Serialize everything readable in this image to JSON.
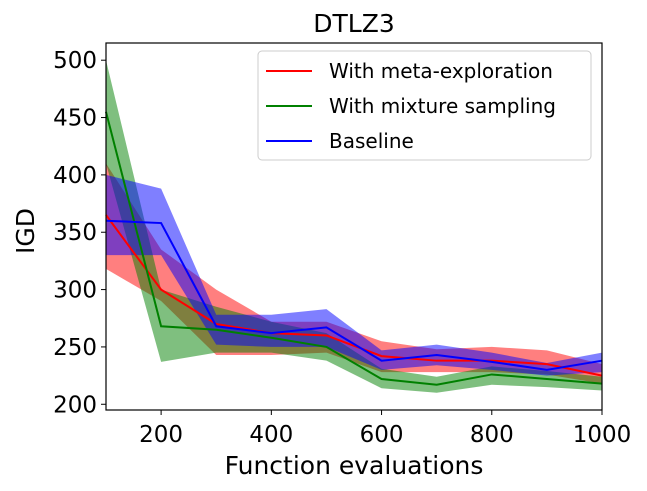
{
  "chart_data": {
    "type": "line",
    "title": "DTLZ3",
    "xlabel": "Function evaluations",
    "ylabel": "IGD",
    "xlim": [
      100,
      1000
    ],
    "ylim": [
      195,
      515
    ],
    "x": [
      100,
      200,
      300,
      400,
      500,
      600,
      700,
      800,
      900,
      1000
    ],
    "xticks": [
      200,
      400,
      600,
      800,
      1000
    ],
    "yticks": [
      200,
      250,
      300,
      350,
      400,
      450,
      500
    ],
    "grid": false,
    "legend_position": "top-right",
    "series": [
      {
        "name": "With meta-exploration",
        "color": "#ff0000",
        "values": [
          365,
          300,
          270,
          262,
          260,
          242,
          238,
          238,
          235,
          225
        ],
        "lower": [
          318,
          290,
          243,
          243,
          245,
          228,
          228,
          228,
          226,
          218
        ],
        "upper": [
          410,
          335,
          300,
          272,
          272,
          255,
          248,
          250,
          247,
          235
        ]
      },
      {
        "name": "With mixture sampling",
        "color": "#008000",
        "values": [
          455,
          268,
          265,
          258,
          250,
          222,
          217,
          226,
          222,
          218
        ],
        "lower": [
          410,
          237,
          245,
          245,
          238,
          214,
          210,
          217,
          215,
          212
        ],
        "upper": [
          500,
          300,
          285,
          272,
          262,
          231,
          224,
          233,
          229,
          224
        ]
      },
      {
        "name": "Baseline",
        "color": "#0000ff",
        "values": [
          360,
          358,
          268,
          262,
          267,
          238,
          243,
          237,
          230,
          238
        ],
        "lower": [
          330,
          330,
          252,
          250,
          250,
          230,
          234,
          230,
          225,
          228
        ],
        "upper": [
          400,
          388,
          278,
          278,
          283,
          247,
          252,
          245,
          236,
          245
        ]
      }
    ]
  }
}
